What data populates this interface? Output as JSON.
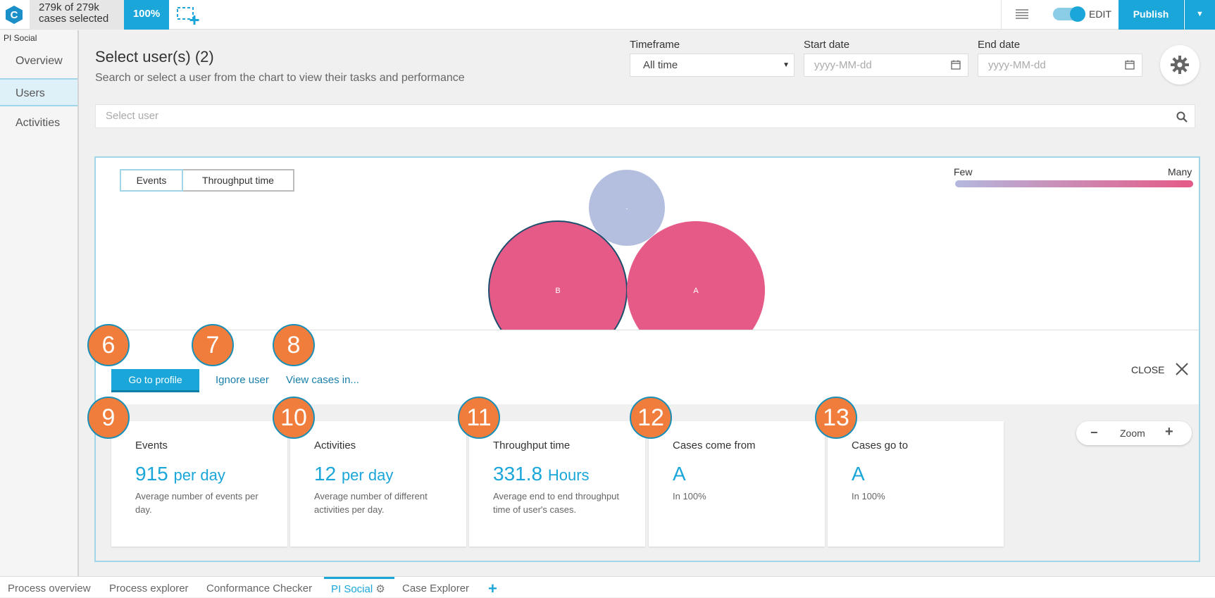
{
  "topbar": {
    "cases_line1": "279k of 279k",
    "cases_line2": "cases selected",
    "percent": "100%",
    "edit_label": "EDIT",
    "publish_label": "Publish"
  },
  "sidebar": {
    "app_label": "PI Social",
    "items": [
      {
        "label": "Overview",
        "active": false
      },
      {
        "label": "Users",
        "active": true
      },
      {
        "label": "Activities",
        "active": false
      }
    ]
  },
  "header": {
    "title": "Select user(s) (2)",
    "subtitle": "Search or select a user from the chart to view their tasks and performance"
  },
  "filters": {
    "timeframe_label": "Timeframe",
    "timeframe_value": "All time",
    "start_label": "Start date",
    "start_placeholder": "yyyy-MM-dd",
    "end_label": "End date",
    "end_placeholder": "yyyy-MM-dd"
  },
  "search": {
    "placeholder": "Select user"
  },
  "chart_tabs": [
    "Events",
    "Throughput time"
  ],
  "legend": {
    "few": "Few",
    "many": "Many"
  },
  "bubbles": [
    {
      "label": "B",
      "color": "#e55a87",
      "selected": true
    },
    {
      "label": "A",
      "color": "#e55a87",
      "selected": false
    },
    {
      "label": "-",
      "color": "#b4bfe0",
      "selected": false
    }
  ],
  "actions": {
    "profile_button": "Go to profile",
    "ignore_link": "Ignore user",
    "view_link": "View cases in...",
    "close_label": "CLOSE"
  },
  "markers": [
    "6",
    "7",
    "8",
    "9",
    "10",
    "11",
    "12",
    "13"
  ],
  "cards": [
    {
      "title": "Events",
      "value": "915",
      "unit": "per day",
      "desc": "Average number of events per day."
    },
    {
      "title": "Activities",
      "value": "12",
      "unit": "per day",
      "desc": "Average number of different activities per day."
    },
    {
      "title": "Throughput time",
      "value": "331.8",
      "unit": "Hours",
      "desc": "Average end to end throughput time of user's cases."
    },
    {
      "title": "Cases come from",
      "value": "A",
      "unit": "",
      "desc": "In 100%"
    },
    {
      "title": "Cases go to",
      "value": "A",
      "unit": "",
      "desc": "In 100%"
    }
  ],
  "zoom": {
    "label": "Zoom"
  },
  "bottom_tabs": [
    {
      "label": "Process overview"
    },
    {
      "label": "Process explorer"
    },
    {
      "label": "Conformance Checker"
    },
    {
      "label": "PI Social",
      "active": true
    },
    {
      "label": "Case Explorer"
    }
  ],
  "colors": {
    "accent": "#1aa6d9",
    "marker": "#f07d3c",
    "bubble_hot": "#e55a87",
    "bubble_cold": "#b4bfe0"
  }
}
